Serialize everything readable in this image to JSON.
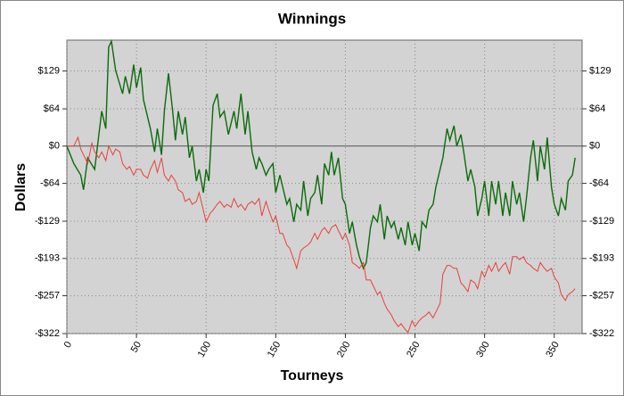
{
  "chart_data": {
    "type": "line",
    "title": "Winnings",
    "x_label": "Tourneys",
    "y_label": "Dollars",
    "xlim": [
      0,
      370
    ],
    "xticks": [
      0,
      50,
      100,
      150,
      200,
      250,
      300,
      350
    ],
    "ylim": [
      -322,
      182
    ],
    "yticks": [
      {
        "value": -322,
        "label": "-$322"
      },
      {
        "value": -257,
        "label": "-$257"
      },
      {
        "value": -193,
        "label": "-$193"
      },
      {
        "value": -129,
        "label": "-$129"
      },
      {
        "value": -64,
        "label": "-$64"
      },
      {
        "value": 0,
        "label": "$0"
      },
      {
        "value": 64,
        "label": "$64"
      },
      {
        "value": 129,
        "label": "$129"
      }
    ],
    "grid": true,
    "series": [
      {
        "color": "#0b6b0b",
        "x": [
          0,
          5,
          10,
          12,
          15,
          20,
          25,
          28,
          30,
          32,
          35,
          40,
          42,
          45,
          48,
          50,
          53,
          55,
          60,
          63,
          65,
          68,
          70,
          73,
          76,
          78,
          80,
          83,
          85,
          88,
          90,
          93,
          95,
          98,
          100,
          102,
          105,
          108,
          110,
          113,
          116,
          120,
          122,
          125,
          128,
          130,
          133,
          136,
          138,
          140,
          143,
          145,
          148,
          150,
          153,
          155,
          158,
          160,
          163,
          165,
          168,
          170,
          173,
          175,
          178,
          180,
          183,
          185,
          188,
          190,
          192,
          195,
          198,
          200,
          203,
          205,
          208,
          210,
          213,
          215,
          218,
          220,
          223,
          225,
          228,
          230,
          233,
          235,
          238,
          240,
          243,
          245,
          248,
          250,
          253,
          255,
          258,
          260,
          263,
          265,
          268,
          270,
          273,
          275,
          278,
          280,
          283,
          285,
          288,
          290,
          293,
          295,
          298,
          300,
          303,
          305,
          308,
          310,
          313,
          315,
          318,
          320,
          323,
          325,
          328,
          330,
          333,
          335,
          338,
          340,
          343,
          345,
          348,
          350,
          353,
          355,
          358,
          360,
          363,
          365
        ],
        "values": [
          0,
          -30,
          -50,
          -75,
          -20,
          -40,
          60,
          30,
          170,
          180,
          130,
          90,
          120,
          90,
          140,
          100,
          135,
          80,
          30,
          -10,
          30,
          -15,
          60,
          125,
          60,
          10,
          60,
          20,
          50,
          -20,
          0,
          -60,
          -40,
          -80,
          -40,
          -60,
          70,
          90,
          50,
          60,
          20,
          60,
          30,
          90,
          20,
          60,
          -10,
          -40,
          -20,
          -30,
          -50,
          -40,
          -30,
          -80,
          -50,
          -70,
          -100,
          -90,
          -130,
          -100,
          -110,
          -60,
          -120,
          -90,
          -80,
          -50,
          -100,
          -30,
          -50,
          -10,
          -50,
          -20,
          -90,
          -100,
          -150,
          -130,
          -170,
          -190,
          -210,
          -200,
          -140,
          -120,
          -130,
          -100,
          -160,
          -120,
          -140,
          -130,
          -160,
          -140,
          -170,
          -130,
          -170,
          -150,
          -180,
          -130,
          -140,
          -110,
          -100,
          -70,
          -40,
          -20,
          30,
          10,
          35,
          0,
          20,
          -10,
          -60,
          -40,
          -70,
          -120,
          -90,
          -60,
          -120,
          -60,
          -100,
          -60,
          -120,
          -80,
          -120,
          -60,
          -100,
          -80,
          -130,
          -90,
          -20,
          10,
          -60,
          0,
          -40,
          15,
          -70,
          -100,
          -120,
          -90,
          -110,
          -60,
          -50,
          -20
        ]
      },
      {
        "color": "#e8413c",
        "x": [
          0,
          5,
          8,
          10,
          13,
          15,
          18,
          20,
          23,
          25,
          28,
          30,
          33,
          35,
          38,
          40,
          43,
          45,
          48,
          50,
          53,
          55,
          58,
          60,
          63,
          65,
          68,
          70,
          73,
          75,
          78,
          80,
          83,
          85,
          88,
          90,
          93,
          95,
          98,
          100,
          103,
          105,
          108,
          110,
          113,
          115,
          118,
          120,
          123,
          125,
          128,
          130,
          133,
          135,
          138,
          140,
          143,
          145,
          148,
          150,
          153,
          155,
          158,
          160,
          163,
          165,
          168,
          170,
          173,
          175,
          178,
          180,
          183,
          185,
          188,
          190,
          193,
          195,
          198,
          200,
          203,
          205,
          208,
          210,
          213,
          215,
          218,
          220,
          223,
          225,
          228,
          230,
          233,
          235,
          238,
          240,
          243,
          245,
          248,
          250,
          253,
          255,
          258,
          260,
          263,
          265,
          268,
          270,
          273,
          275,
          278,
          280,
          283,
          285,
          288,
          290,
          293,
          295,
          298,
          300,
          303,
          305,
          308,
          310,
          313,
          315,
          318,
          320,
          323,
          325,
          328,
          330,
          333,
          335,
          338,
          340,
          343,
          345,
          348,
          350,
          353,
          355,
          358,
          360,
          363,
          365
        ],
        "values": [
          0,
          0,
          15,
          -5,
          -20,
          -30,
          5,
          -10,
          -20,
          -10,
          -25,
          0,
          -15,
          -5,
          -10,
          -30,
          -40,
          -35,
          -50,
          -40,
          -40,
          -50,
          -55,
          -40,
          -25,
          -45,
          -20,
          -50,
          -60,
          -50,
          -60,
          -75,
          -80,
          -95,
          -90,
          -100,
          -95,
          -80,
          -110,
          -130,
          -115,
          -110,
          -100,
          -95,
          -105,
          -100,
          -105,
          -90,
          -105,
          -100,
          -110,
          -100,
          -95,
          -100,
          -90,
          -120,
          -95,
          -110,
          -130,
          -120,
          -150,
          -150,
          -170,
          -175,
          -195,
          -210,
          -180,
          -175,
          -170,
          -165,
          -150,
          -160,
          -145,
          -140,
          -150,
          -140,
          -135,
          -145,
          -160,
          -150,
          -170,
          -200,
          -205,
          -210,
          -200,
          -230,
          -230,
          -240,
          -255,
          -250,
          -270,
          -280,
          -290,
          -300,
          -310,
          -305,
          -315,
          -320,
          -300,
          -310,
          -300,
          -295,
          -290,
          -285,
          -295,
          -285,
          -270,
          -220,
          -205,
          -205,
          -210,
          -210,
          -235,
          -240,
          -250,
          -230,
          -235,
          -245,
          -215,
          -225,
          -205,
          -215,
          -200,
          -215,
          -205,
          -200,
          -220,
          -190,
          -190,
          -195,
          -190,
          -200,
          -205,
          -210,
          -215,
          -200,
          -210,
          -215,
          -210,
          -225,
          -235,
          -255,
          -265,
          -255,
          -250,
          -245
        ]
      }
    ]
  }
}
